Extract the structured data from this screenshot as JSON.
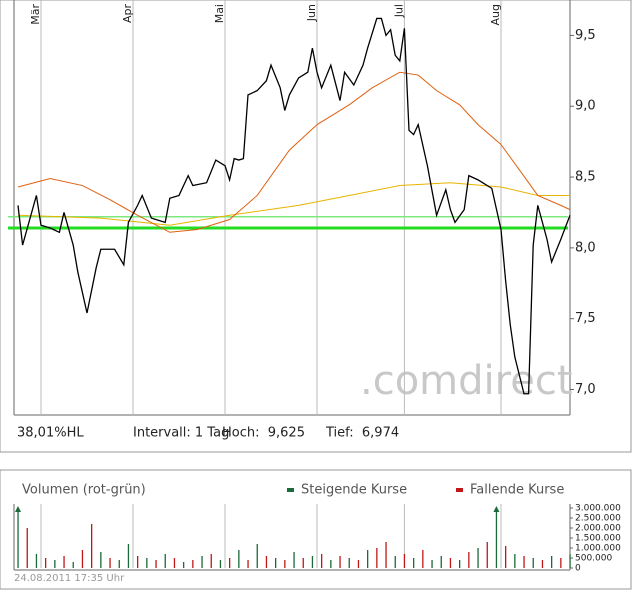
{
  "chart_data": [
    {
      "type": "line",
      "watermark": ".comdirect",
      "info": [
        "38,01%HL",
        "Intervall: 1 Tag",
        "Hoch:  9,625",
        "Tief:  6,974"
      ],
      "xlim": [
        0,
        120
      ],
      "xticks": [
        {
          "value": 5,
          "label": "Mär"
        },
        {
          "value": 25,
          "label": "Apr"
        },
        {
          "value": 45,
          "label": "Mai"
        },
        {
          "value": 65,
          "label": "Jun"
        },
        {
          "value": 84,
          "label": "Jul"
        },
        {
          "value": 105,
          "label": "Aug"
        }
      ],
      "ylim": [
        6.82,
        9.75
      ],
      "yticks": [
        {
          "value": 7.0,
          "label": "7,0"
        },
        {
          "value": 7.5,
          "label": "7,5"
        },
        {
          "value": 8.0,
          "label": "8,0"
        },
        {
          "value": 8.5,
          "label": "8,5"
        },
        {
          "value": 9.0,
          "label": "9,0"
        },
        {
          "value": 9.5,
          "label": "9,5"
        }
      ],
      "hlines": [
        {
          "value": 8.22,
          "color": "#7de87d",
          "width": 1.5
        },
        {
          "value": 8.14,
          "color": "#22dd22",
          "width": 3
        }
      ],
      "series": [
        {
          "color": "#e8b400",
          "width": 1,
          "x": [
            0,
            18,
            33,
            46,
            61,
            72,
            83,
            94,
            105,
            113,
            120
          ],
          "values": [
            8.23,
            8.21,
            8.16,
            8.23,
            8.3,
            8.37,
            8.44,
            8.46,
            8.43,
            8.37,
            8.37
          ]
        },
        {
          "color": "#e06010",
          "width": 1,
          "x": [
            0,
            7,
            14,
            20,
            26,
            33,
            39,
            46,
            52,
            59,
            65,
            72,
            77,
            83,
            87,
            91,
            96,
            100,
            105,
            109,
            113,
            118,
            120
          ],
          "values": [
            8.43,
            8.49,
            8.44,
            8.34,
            8.23,
            8.11,
            8.13,
            8.2,
            8.37,
            8.69,
            8.87,
            9.01,
            9.13,
            9.24,
            9.22,
            9.11,
            9.01,
            8.87,
            8.73,
            8.55,
            8.37,
            8.3,
            8.27
          ]
        },
        {
          "color": "#000000",
          "width": 1.3,
          "x": [
            0,
            1,
            4,
            5,
            7,
            9,
            10,
            12,
            13,
            15,
            17,
            18,
            21,
            23,
            24,
            26,
            27,
            29,
            32,
            33,
            35,
            37,
            38,
            41,
            43,
            45,
            46,
            47,
            48,
            49,
            50,
            52,
            54,
            55,
            57,
            58,
            59,
            61,
            63,
            64,
            65,
            66,
            68,
            70,
            71,
            73,
            75,
            76,
            78,
            79,
            80,
            81,
            82,
            83,
            84,
            85,
            86,
            87,
            89,
            91,
            93,
            94,
            95,
            97,
            98,
            100,
            101,
            103,
            105,
            106,
            107,
            108,
            110,
            111,
            112,
            113,
            115,
            116,
            118,
            120
          ],
          "values": [
            8.3,
            8.02,
            8.37,
            8.16,
            8.14,
            8.11,
            8.25,
            8.02,
            7.83,
            7.54,
            7.86,
            7.99,
            7.99,
            7.88,
            8.18,
            8.3,
            8.37,
            8.21,
            8.18,
            8.35,
            8.37,
            8.51,
            8.44,
            8.46,
            8.62,
            8.58,
            8.48,
            8.63,
            8.62,
            8.63,
            9.08,
            9.11,
            9.18,
            9.29,
            9.13,
            8.97,
            9.08,
            9.2,
            9.24,
            9.41,
            9.24,
            9.13,
            9.29,
            9.04,
            9.24,
            9.15,
            9.29,
            9.41,
            9.62,
            9.62,
            9.5,
            9.54,
            9.36,
            9.32,
            9.55,
            8.83,
            8.8,
            8.87,
            8.58,
            8.23,
            8.41,
            8.27,
            8.18,
            8.27,
            8.51,
            8.48,
            8.46,
            8.42,
            8.13,
            7.77,
            7.46,
            7.23,
            6.97,
            6.97,
            8.02,
            8.3,
            8.06,
            7.9,
            8.06,
            8.23
          ]
        }
      ]
    },
    {
      "type": "bar",
      "title": "Volumen (rot-grün)",
      "timestamp": "24.08.2011 17:35 Uhr",
      "xlim": [
        0,
        120
      ],
      "xticks": [
        5,
        25,
        45,
        65,
        84,
        105
      ],
      "ylim": [
        0,
        3000000
      ],
      "yticks": [
        {
          "value": 0,
          "label": "0"
        },
        {
          "value": 500000,
          "label": "500.000"
        },
        {
          "value": 1000000,
          "label": "1.000.000"
        },
        {
          "value": 1500000,
          "label": "1.500.000"
        },
        {
          "value": 2000000,
          "label": "2.000.000"
        },
        {
          "value": 2500000,
          "label": "2.500.000"
        },
        {
          "value": 3000000,
          "label": "3.000.000"
        }
      ],
      "x": [
        0,
        2,
        4,
        6,
        8,
        10,
        12,
        14,
        16,
        18,
        20,
        22,
        24,
        26,
        28,
        30,
        32,
        34,
        36,
        38,
        40,
        42,
        44,
        46,
        48,
        50,
        52,
        54,
        56,
        58,
        60,
        62,
        64,
        66,
        68,
        70,
        72,
        74,
        76,
        78,
        80,
        82,
        84,
        86,
        88,
        90,
        92,
        94,
        96,
        98,
        100,
        102,
        104,
        106,
        108,
        110,
        112,
        114,
        116,
        118,
        120
      ],
      "series": [
        {
          "name": "Steigende Kurse",
          "color": "#1a6a3a",
          "values": [
            3000000,
            null,
            700000,
            null,
            400000,
            null,
            300000,
            null,
            null,
            800000,
            null,
            400000,
            1200000,
            null,
            500000,
            null,
            700000,
            null,
            300000,
            null,
            600000,
            null,
            400000,
            null,
            900000,
            null,
            1200000,
            null,
            500000,
            null,
            800000,
            null,
            600000,
            null,
            400000,
            null,
            500000,
            null,
            900000,
            null,
            null,
            600000,
            null,
            500000,
            null,
            400000,
            600000,
            null,
            400000,
            null,
            1000000,
            null,
            3000000,
            null,
            700000,
            null,
            500000,
            null,
            600000,
            null,
            700000
          ]
        },
        {
          "name": "Fallende Kurse",
          "color": "#c01818",
          "values": [
            null,
            2000000,
            null,
            500000,
            null,
            600000,
            null,
            900000,
            2200000,
            null,
            500000,
            null,
            null,
            600000,
            null,
            400000,
            null,
            500000,
            null,
            400000,
            null,
            700000,
            null,
            500000,
            null,
            400000,
            null,
            600000,
            null,
            400000,
            null,
            500000,
            null,
            700000,
            null,
            600000,
            null,
            400000,
            null,
            1000000,
            1300000,
            null,
            700000,
            null,
            900000,
            null,
            null,
            500000,
            null,
            800000,
            null,
            1300000,
            null,
            1100000,
            null,
            600000,
            null,
            400000,
            null,
            500000,
            null
          ]
        }
      ]
    }
  ]
}
